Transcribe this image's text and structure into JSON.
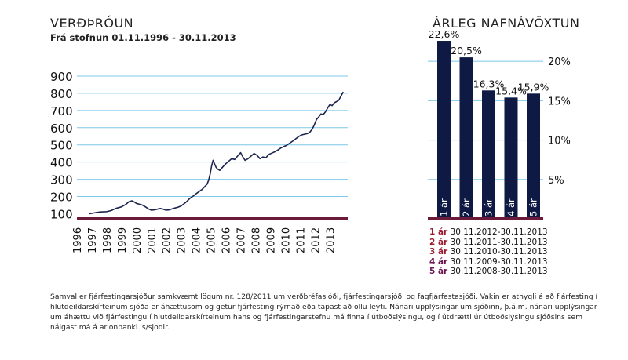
{
  "left_title": "VERÐÞRÓUN",
  "left_subtitle": "Frá stofnun 01.11.1996 - 30.11.2013",
  "right_title": "ÁRLEG NAFNÁVÖXTUN",
  "colors": {
    "line": "#1d2450",
    "grid": "#7cc8e8",
    "axis": "#6b1a3a",
    "bar": "#0f1a44"
  },
  "legend": [
    {
      "num": "1 ár",
      "range": " 30.11.2012-30.11.2013",
      "color": "#9a1b30"
    },
    {
      "num": "2 ár",
      "range": " 30.11.2011-30.11.2013",
      "color": "#9a1b30"
    },
    {
      "num": "3 ár",
      "range": " 30.11.2010-30.11.2013",
      "color": "#9a1b30"
    },
    {
      "num": "4 ár",
      "range": " 30.11.2009-30.11.2013",
      "color": "#6a1250"
    },
    {
      "num": "5 ár",
      "range": " 30.11.2008-30.11.2013",
      "color": "#6a1250"
    }
  ],
  "footnote": "Samval er fjárfestingarsjóður samkvæmt lögum nr. 128/2011 um verðbréfasjóði, fjárfestingarsjóði og fagfjárfestasjóði. Vakin er athygli á að fjárfesting í hlutdeildarskírteinum sjóða er áhættusöm og getur fjárfesting rýrnað eða tapast að öllu leyti. Nánari upplýsingar um sjóðinn, þ.á.m. nánari upplýsingar um áhættu við fjárfestingu í hlutdeildarskírteinum hans og fjárfestingarstefnu má finna í útboðslýsingu, og í útdrætti úr útboðslýsingu sjóðsins sem nálgast má á arionbanki.is/sjodir.",
  "chart_data": [
    {
      "type": "line",
      "title": "VERÐÞRÓUN",
      "subtitle": "Frá stofnun 01.11.1996 - 30.11.2013",
      "xlabel": "",
      "ylabel": "",
      "xlim": [
        1996.0,
        2014.2
      ],
      "ylim": [
        70,
        900
      ],
      "yticks": [
        100,
        200,
        300,
        400,
        500,
        600,
        700,
        800,
        900
      ],
      "xticks": [
        "1996",
        "1997",
        "1998",
        "1999",
        "2000",
        "2001",
        "2002",
        "2003",
        "2004",
        "2005",
        "2006",
        "2007",
        "2008",
        "2009",
        "2010",
        "2011",
        "2012",
        "2013"
      ],
      "grid": true,
      "x": [
        1996.84,
        1997.0,
        1997.3,
        1997.6,
        1998.0,
        1998.3,
        1998.6,
        1999.0,
        1999.3,
        1999.5,
        1999.7,
        1999.85,
        2000.0,
        2000.2,
        2000.4,
        2000.6,
        2000.8,
        2001.0,
        2001.2,
        2001.4,
        2001.6,
        2001.8,
        2002.0,
        2002.2,
        2002.4,
        2002.6,
        2002.8,
        2003.0,
        2003.2,
        2003.4,
        2003.6,
        2003.8,
        2004.0,
        2004.2,
        2004.4,
        2004.6,
        2004.75,
        2004.85,
        2004.95,
        2005.05,
        2005.15,
        2005.25,
        2005.35,
        2005.45,
        2005.6,
        2005.8,
        2006.0,
        2006.2,
        2006.4,
        2006.6,
        2006.8,
        2007.0,
        2007.15,
        2007.3,
        2007.5,
        2007.7,
        2007.9,
        2008.1,
        2008.3,
        2008.5,
        2008.7,
        2008.9,
        2009.1,
        2009.3,
        2009.5,
        2009.7,
        2009.9,
        2010.1,
        2010.3,
        2010.5,
        2010.7,
        2010.9,
        2011.1,
        2011.3,
        2011.5,
        2011.65,
        2011.8,
        2011.95,
        2012.1,
        2012.25,
        2012.4,
        2012.55,
        2012.7,
        2012.85,
        2013.0,
        2013.15,
        2013.3,
        2013.45,
        2013.6,
        2013.75,
        2013.9
      ],
      "y": [
        100,
        102,
        107,
        110,
        112,
        118,
        130,
        140,
        155,
        170,
        175,
        168,
        160,
        155,
        150,
        140,
        128,
        120,
        122,
        126,
        130,
        126,
        120,
        122,
        128,
        133,
        138,
        145,
        158,
        172,
        190,
        202,
        215,
        228,
        240,
        258,
        272,
        295,
        330,
        378,
        410,
        390,
        370,
        360,
        352,
        372,
        390,
        405,
        420,
        415,
        435,
        455,
        430,
        410,
        420,
        435,
        450,
        440,
        420,
        430,
        425,
        445,
        452,
        460,
        470,
        482,
        490,
        498,
        510,
        522,
        535,
        548,
        558,
        562,
        566,
        574,
        590,
        615,
        648,
        662,
        680,
        676,
        692,
        715,
        735,
        728,
        745,
        752,
        760,
        785,
        808
      ]
    },
    {
      "type": "bar",
      "title": "ÁRLEG NAFNÁVÖXTUN",
      "categories": [
        "1 ár",
        "2 ár",
        "3 ár",
        "4 ár",
        "5 ár"
      ],
      "values": [
        22.6,
        20.5,
        16.3,
        15.4,
        15.9
      ],
      "value_labels": [
        "22,6%",
        "20,5%",
        "16,3%",
        "15,4%",
        "15,9%"
      ],
      "yticks": [
        5,
        10,
        15,
        20
      ],
      "ytick_labels": [
        "5%",
        "10%",
        "15%",
        "20%"
      ],
      "ylim": [
        0,
        23
      ],
      "grid": true
    }
  ]
}
